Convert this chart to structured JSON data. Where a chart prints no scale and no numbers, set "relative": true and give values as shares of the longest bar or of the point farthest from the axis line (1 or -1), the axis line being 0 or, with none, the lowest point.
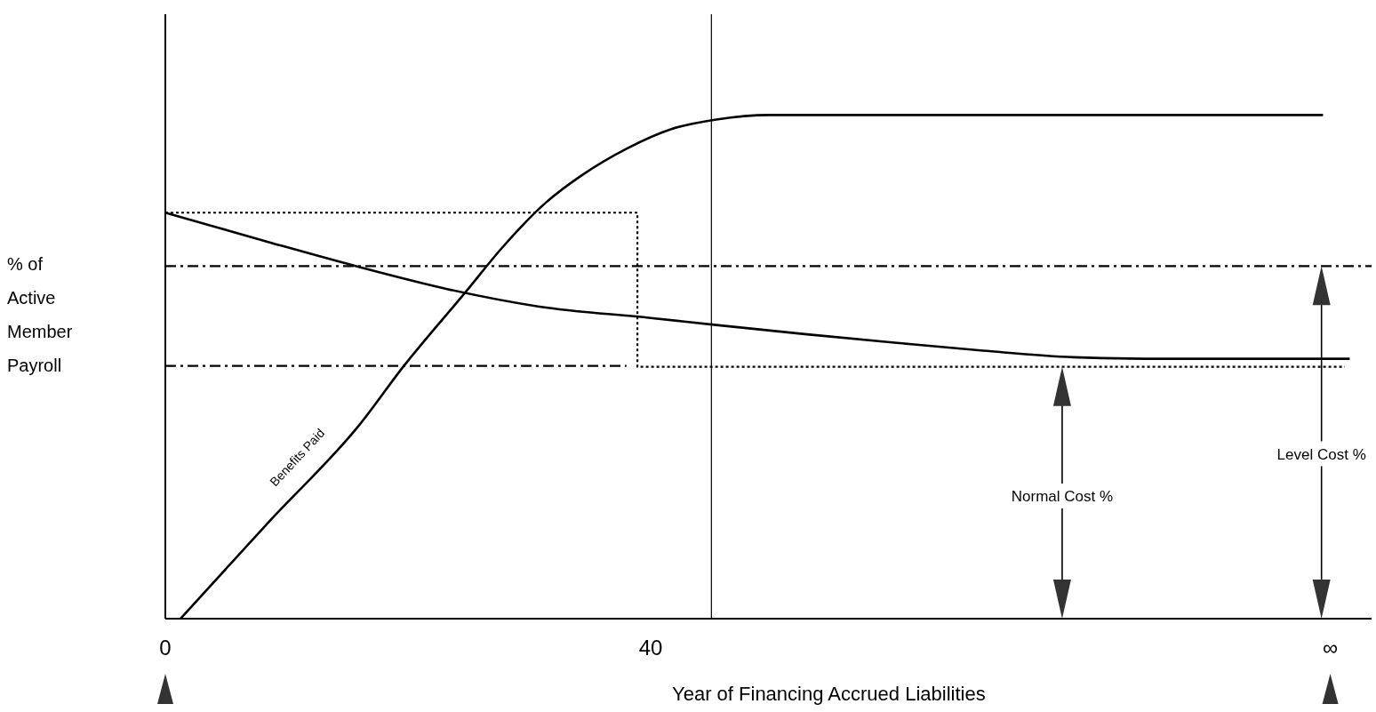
{
  "chart_data": {
    "type": "line",
    "relative": true,
    "xlabel": "Year of Financing Accrued Liabilities",
    "ylabel": "% of Active Member Payroll",
    "xlim": [
      0,
      99.4
    ],
    "xticks": [
      0,
      40,
      {
        "value": 96,
        "label": "∞"
      }
    ],
    "marker": "none",
    "series": [
      {
        "name": "Benefits Paid",
        "color": "#000000",
        "line_style": "solid",
        "x": [
          1.25,
          8.6,
          16.0,
          19.6,
          24.8,
          27.7,
          31.4,
          34.3,
          38.0,
          41.7,
          45.4,
          49.8,
          95.4
        ],
        "values": [
          0,
          0.194,
          0.385,
          0.5,
          0.65,
          0.735,
          0.827,
          0.88,
          0.933,
          0.972,
          0.991,
          1,
          1
        ]
      },
      {
        "color": "#000000",
        "line_style": "solid",
        "x": [
          0,
          8.6,
          16.0,
          23.3,
          30.7,
          40,
          45.4,
          52.7,
          60.1,
          67.4,
          74.8,
          82.1,
          97.6
        ],
        "values": [
          0.806,
          0.747,
          0.698,
          0.654,
          0.62,
          0.597,
          0.583,
          0.565,
          0.548,
          0.532,
          0.519,
          0.516,
          0.516
        ]
      },
      {
        "color": "#000000",
        "line_style": "dotted",
        "x": [
          0,
          38.9,
          38.9,
          97.2
        ],
        "values": [
          0.806,
          0.806,
          0.5,
          0.5
        ]
      },
      {
        "color": "#000000",
        "line_style": "dashed",
        "x": [
          0,
          38
        ],
        "values": [
          0.502,
          0.502
        ]
      }
    ],
    "ref_lines": [
      {
        "axis": "y",
        "value": 0.7,
        "line_style": "dashed",
        "color": "#000000"
      },
      {
        "axis": "x",
        "value": 45,
        "line_style": "solid",
        "color": "#000000"
      }
    ],
    "annotations": [
      "Normal Cost %",
      "Level Cost %"
    ]
  }
}
